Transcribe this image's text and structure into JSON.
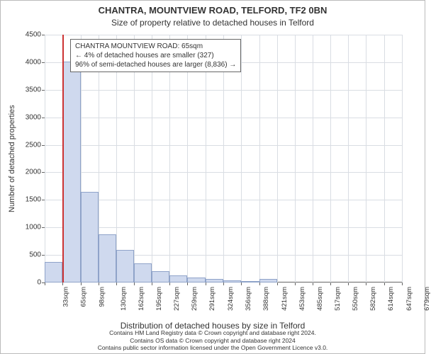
{
  "title_line1": "CHANTRA, MOUNTVIEW ROAD, TELFORD, TF2 0BN",
  "title_line2": "Size of property relative to detached houses in Telford",
  "ylabel": "Number of detached properties",
  "xlabel": "Distribution of detached houses by size in Telford",
  "attribution_line1": "Contains HM Land Registry data © Crown copyright and database right 2024.",
  "attribution_line2": "Contains OS data © Crown copyright and database right 2024",
  "attribution_line3": "Contains public sector information licensed under the Open Government Licence v3.0.",
  "chart": {
    "type": "histogram",
    "background_color": "#ffffff",
    "grid_color": "#d9dde3",
    "axis_color": "#666666",
    "bar_fill": "#cfd9ee",
    "bar_stroke": "#8fa3c9",
    "marker_color": "#cc3333",
    "marker_value": 65,
    "title_fontsize": 13,
    "subtitle_fontsize": 12,
    "label_fontsize": 11,
    "tick_fontsize": 10,
    "bar_width_ratio": 1.0,
    "x_bins": [
      33,
      65,
      98,
      130,
      162,
      195,
      227,
      259,
      291,
      324,
      356,
      388,
      421,
      453,
      485,
      517,
      550,
      582,
      614,
      647,
      679
    ],
    "x_tick_labels": [
      "33sqm",
      "65sqm",
      "98sqm",
      "130sqm",
      "162sqm",
      "195sqm",
      "227sqm",
      "259sqm",
      "291sqm",
      "324sqm",
      "356sqm",
      "388sqm",
      "421sqm",
      "453sqm",
      "485sqm",
      "517sqm",
      "550sqm",
      "582sqm",
      "614sqm",
      "647sqm",
      "679sqm"
    ],
    "y_values": [
      370,
      4010,
      1640,
      880,
      590,
      350,
      200,
      130,
      90,
      60,
      40,
      30,
      60,
      0,
      0,
      0,
      0,
      0,
      0,
      0
    ],
    "ylim": [
      0,
      4500
    ],
    "y_ticks": [
      0,
      500,
      1000,
      1500,
      2000,
      2500,
      3000,
      3500,
      4000,
      4500
    ],
    "xlim": [
      33,
      679
    ]
  },
  "annotation": {
    "line1": "CHANTRA MOUNTVIEW ROAD: 65sqm",
    "line2": "← 4% of detached houses are smaller (327)",
    "line3": "96% of semi-detached houses are larger (8,836) →",
    "box_border": "#666666",
    "box_bg": "#ffffff",
    "fontsize": 10
  }
}
